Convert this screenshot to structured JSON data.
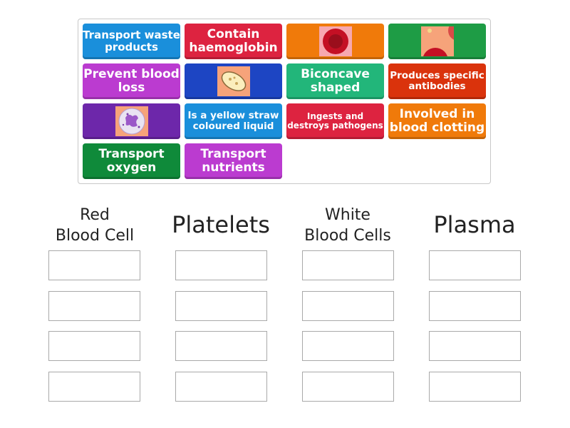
{
  "tiles": {
    "transport_waste": "Transport waste products",
    "contain_haemoglobin": "Contain haemoglobin",
    "red_cell_image": "red-blood-cell-image",
    "red_cell_partial_image": "red-blood-cell-partial-image",
    "prevent_blood_loss": "Prevent blood loss",
    "platelet_image": "platelet-image",
    "biconcave": "Biconcave shaped",
    "produces_antibodies": "Produces specific antibodies",
    "white_cell_image": "white-blood-cell-image",
    "yellow_liquid": "Is a yellow straw coloured liquid",
    "ingests_pathogens": "Ingests and destroys pathogens",
    "blood_clotting": "Involved in blood clotting",
    "transport_oxygen": "Transport oxygen",
    "transport_nutrients": "Transport nutrients"
  },
  "categories": {
    "red_blood_cell": {
      "line1": "Red",
      "line2": "Blood Cell"
    },
    "platelets": "Platelets",
    "white_blood_cells": {
      "line1": "White",
      "line2": "Blood Cells"
    },
    "plasma": "Plasma"
  },
  "colors": {
    "blue": "#1a8fdb",
    "red": "#dd2340",
    "orange": "#f07a0a",
    "green": "#1e9c45",
    "magenta": "#bb3bd0",
    "navy": "#1d45c3",
    "teal": "#22b67a",
    "dark_red": "#da330c",
    "purple": "#6d27aa",
    "dark_green": "#0f8a3a"
  }
}
